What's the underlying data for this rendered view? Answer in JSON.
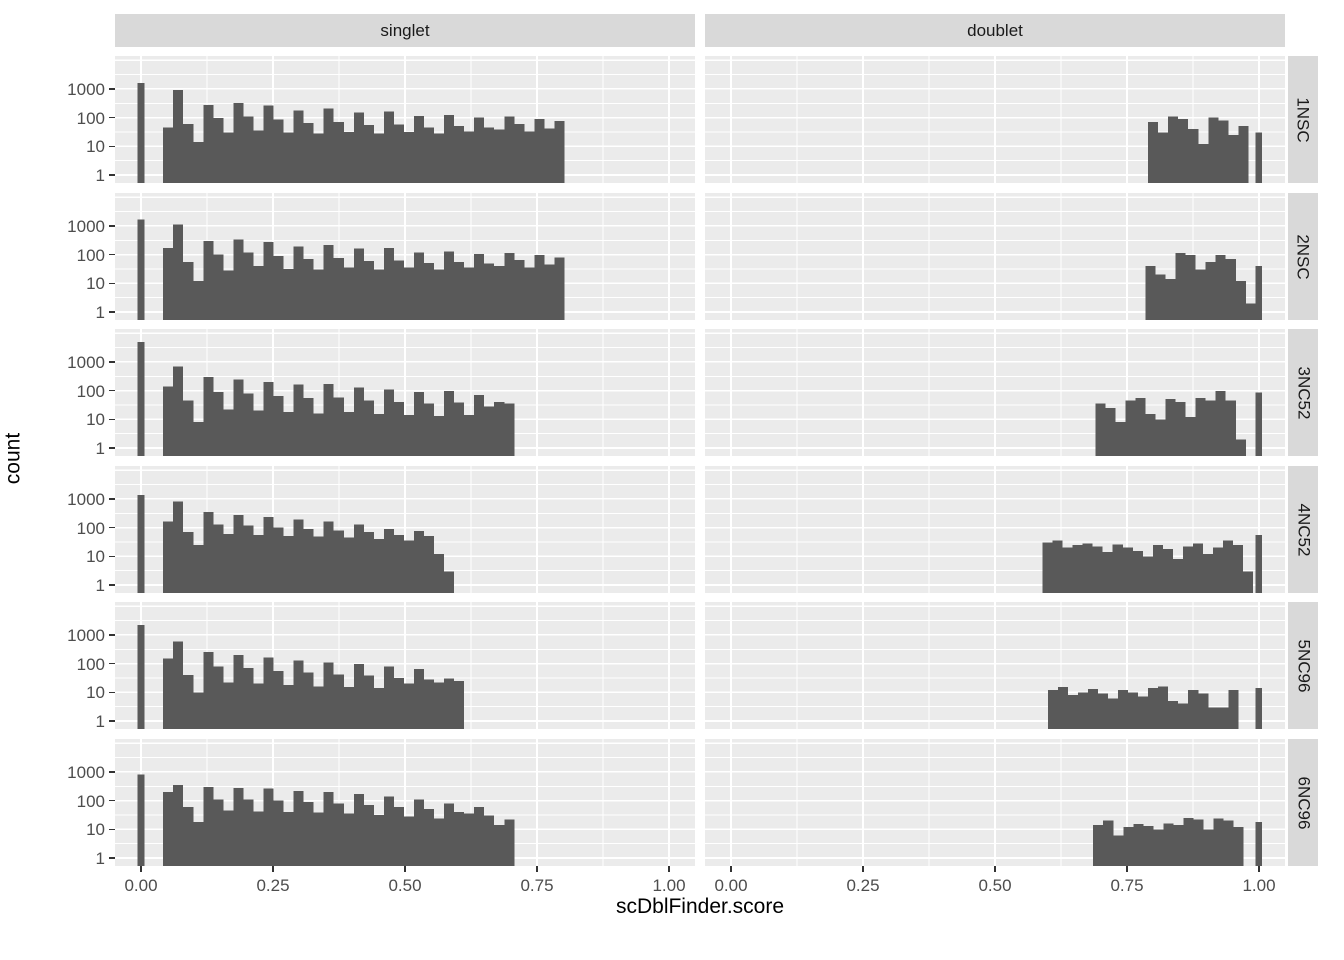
{
  "chart_data": {
    "type": "bar",
    "subtype": "faceted_histogram",
    "title": "",
    "xlabel": "scDblFinder.score",
    "ylabel": "count",
    "y_scale": "log10",
    "grid": "on",
    "legend": "none",
    "x_ticks": {
      "values": [
        0,
        0.25,
        0.5,
        0.75,
        1.0
      ],
      "labels": [
        "0.00",
        "0.25",
        "0.50",
        "0.75",
        "1.00"
      ]
    },
    "y_ticks": {
      "values": [
        1,
        10,
        100,
        1000
      ],
      "labels": [
        "1",
        "10",
        "100",
        "1000"
      ]
    },
    "xlim": [
      -0.05,
      1.05
    ],
    "ylim_log10": [
      -0.28,
      4.15
    ],
    "col_facets": [
      "singlet",
      "doublet"
    ],
    "row_facets": [
      "1NSC",
      "2NSC",
      "3NC52",
      "4NC52",
      "5NC96",
      "6NC96"
    ],
    "colors": {
      "bar": "#595959",
      "panel_bg": "#EBEBEB",
      "strip_bg": "#D9D9D9",
      "gridline": "#FFFFFF",
      "axis_text": "#4D4D4D",
      "tick_mark": "#333333",
      "title_text": "#000000",
      "strip_text": "#1A1A1A"
    },
    "panels": [
      {
        "col": "singlet",
        "row": "1NSC",
        "series": [
          {
            "x": -0.0065,
            "w": 0.013,
            "count": 1600
          },
          {
            "start": 0.042,
            "w": 0.019,
            "counts": [
              45,
              900,
              60,
              14,
              280,
              95,
              30,
              320,
              110,
              35,
              260,
              85,
              30,
              180,
              65,
              28,
              210,
              70,
              32,
              150,
              55,
              28,
              160,
              58,
              32,
              115,
              45,
              28,
              125,
              52,
              33,
              100,
              45,
              38,
              110,
              60,
              33,
              90,
              42,
              75
            ]
          }
        ]
      },
      {
        "col": "singlet",
        "row": "2NSC",
        "series": [
          {
            "x": -0.0065,
            "w": 0.013,
            "count": 1700
          },
          {
            "start": 0.042,
            "w": 0.019,
            "counts": [
              170,
              1100,
              55,
              12,
              300,
              100,
              28,
              330,
              120,
              40,
              270,
              90,
              32,
              190,
              70,
              30,
              220,
              75,
              35,
              160,
              60,
              30,
              170,
              62,
              35,
              120,
              50,
              30,
              130,
              55,
              35,
              105,
              48,
              40,
              115,
              65,
              35,
              95,
              45,
              80
            ]
          }
        ]
      },
      {
        "col": "singlet",
        "row": "3NC52",
        "series": [
          {
            "x": -0.0065,
            "w": 0.013,
            "count": 5000
          },
          {
            "start": 0.042,
            "w": 0.019,
            "counts": [
              140,
              700,
              45,
              8,
              300,
              90,
              22,
              240,
              80,
              20,
              200,
              65,
              18,
              160,
              55,
              16,
              170,
              58,
              18,
              130,
              45,
              15,
              110,
              40,
              14,
              90,
              35,
              13,
              95,
              38,
              14,
              70,
              28,
              40,
              35
            ]
          }
        ]
      },
      {
        "col": "singlet",
        "row": "4NC52",
        "series": [
          {
            "x": -0.0065,
            "w": 0.013,
            "count": 1350
          },
          {
            "start": 0.042,
            "w": 0.019,
            "counts": [
              160,
              800,
              70,
              25,
              350,
              130,
              60,
              280,
              120,
              55,
              230,
              100,
              50,
              190,
              90,
              48,
              160,
              80,
              45,
              130,
              70,
              40,
              90,
              55,
              35,
              75,
              50,
              12,
              3
            ]
          }
        ]
      },
      {
        "col": "singlet",
        "row": "5NC96",
        "series": [
          {
            "x": -0.0065,
            "w": 0.013,
            "count": 2200
          },
          {
            "start": 0.042,
            "w": 0.019,
            "counts": [
              150,
              600,
              40,
              10,
              250,
              80,
              22,
              200,
              70,
              20,
              160,
              55,
              18,
              130,
              48,
              16,
              110,
              42,
              15,
              95,
              38,
              14,
              80,
              32,
              20,
              65,
              28,
              22,
              30,
              25
            ]
          }
        ]
      },
      {
        "col": "singlet",
        "row": "6NC96",
        "series": [
          {
            "x": -0.0065,
            "w": 0.013,
            "count": 800
          },
          {
            "start": 0.042,
            "w": 0.019,
            "counts": [
              200,
              350,
              60,
              18,
              300,
              110,
              45,
              280,
              110,
              42,
              260,
              100,
              40,
              220,
              90,
              38,
              200,
              80,
              35,
              170,
              70,
              32,
              140,
              60,
              28,
              110,
              50,
              24,
              80,
              40,
              35,
              60,
              30,
              14,
              22
            ]
          }
        ]
      },
      {
        "col": "doublet",
        "row": "1NSC",
        "series": [
          {
            "start": 0.79,
            "w": 0.019,
            "counts": [
              70,
              30,
              110,
              90,
              40,
              12,
              100,
              80,
              25,
              50
            ]
          },
          {
            "x": 0.993,
            "w": 0.013,
            "count": 30
          }
        ]
      },
      {
        "col": "doublet",
        "row": "2NSC",
        "series": [
          {
            "start": 0.785,
            "w": 0.019,
            "counts": [
              40,
              20,
              14,
              115,
              95,
              30,
              55,
              95,
              70,
              12
            ]
          },
          {
            "x": 0.975,
            "w": 0.019,
            "count": 2
          },
          {
            "x": 0.993,
            "w": 0.013,
            "count": 40
          }
        ]
      },
      {
        "col": "doublet",
        "row": "3NC52",
        "series": [
          {
            "start": 0.69,
            "w": 0.019,
            "counts": [
              35,
              25,
              8,
              45,
              55,
              15,
              10,
              50,
              40,
              12,
              55,
              45,
              95,
              45
            ]
          },
          {
            "x": 0.956,
            "w": 0.019,
            "count": 2
          },
          {
            "x": 0.993,
            "w": 0.013,
            "count": 85
          }
        ]
      },
      {
        "col": "doublet",
        "row": "4NC52",
        "series": [
          {
            "start": 0.59,
            "w": 0.019,
            "counts": [
              30,
              35,
              20,
              25,
              28,
              22,
              14,
              26,
              20,
              15,
              10,
              25,
              18,
              8,
              22,
              28,
              12,
              20,
              35,
              25
            ]
          },
          {
            "x": 0.97,
            "w": 0.019,
            "count": 3
          },
          {
            "x": 0.993,
            "w": 0.013,
            "count": 55
          }
        ]
      },
      {
        "col": "doublet",
        "row": "5NC96",
        "series": [
          {
            "start": 0.6,
            "w": 0.019,
            "counts": [
              12,
              15,
              8,
              10,
              13,
              9,
              6,
              12,
              10,
              7,
              14,
              16,
              5,
              4,
              12,
              9,
              3
            ]
          },
          {
            "x": 0.923,
            "w": 0.019,
            "count": 3
          },
          {
            "x": 0.942,
            "w": 0.019,
            "count": 12
          },
          {
            "x": 0.993,
            "w": 0.013,
            "count": 14
          }
        ]
      },
      {
        "col": "doublet",
        "row": "6NC96",
        "series": [
          {
            "start": 0.686,
            "w": 0.019,
            "counts": [
              14,
              20,
              6,
              12,
              15,
              13,
              10,
              16,
              14,
              25,
              22,
              10,
              24,
              20,
              12
            ]
          },
          {
            "x": 0.993,
            "w": 0.013,
            "count": 18
          }
        ]
      }
    ]
  }
}
